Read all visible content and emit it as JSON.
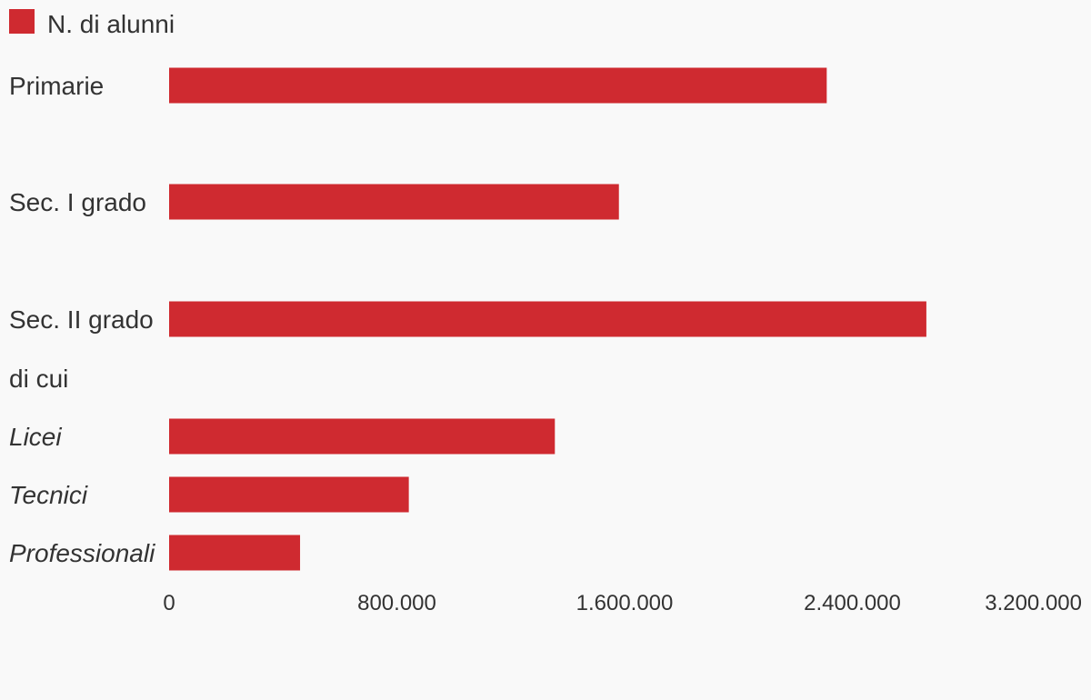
{
  "chart_data": {
    "type": "bar",
    "orientation": "horizontal",
    "legend": {
      "placement": "top-left",
      "entries": [
        {
          "name": "N. di alunni",
          "color": "#cf2a30"
        }
      ]
    },
    "categories": [
      {
        "label": "Primarie",
        "value": 2310000,
        "italic": false
      },
      {
        "label": "Sec. I grado",
        "value": 1580000,
        "italic": false
      },
      {
        "label": "Sec. II grado",
        "value": 2660000,
        "italic": false
      },
      {
        "label": "di cui",
        "value": null,
        "italic": false
      },
      {
        "label": "Licei",
        "value": 1355000,
        "italic": true
      },
      {
        "label": "Tecnici",
        "value": 842000,
        "italic": true
      },
      {
        "label": "Professionali",
        "value": 460000,
        "italic": true
      }
    ],
    "series": [
      {
        "name": "N. di alunni",
        "color": "#cf2a30"
      }
    ],
    "xlim": [
      0,
      3200000
    ],
    "x_ticks": [
      {
        "value": 0,
        "label": "0"
      },
      {
        "value": 800000,
        "label": "800.000"
      },
      {
        "value": 1600000,
        "label": "1.600.000"
      },
      {
        "value": 2400000,
        "label": "2.400.000"
      },
      {
        "value": 3200000,
        "label": "3.200.000"
      }
    ],
    "grid": false,
    "bar_color": "#cf2a30",
    "background": "#f9f9f9"
  }
}
